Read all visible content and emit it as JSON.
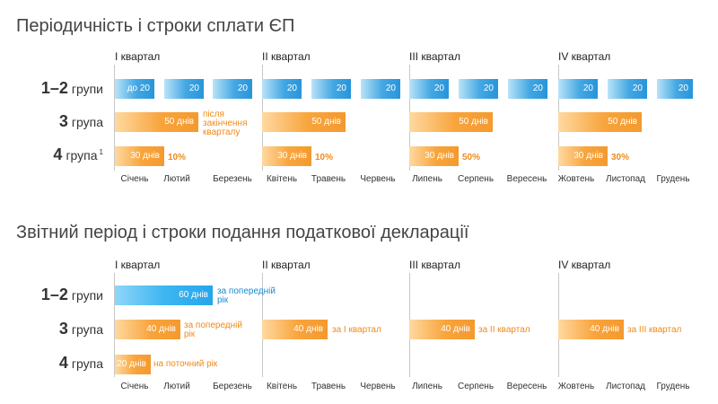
{
  "section1": {
    "title": "Періодичність і строки сплати ЄП",
    "quarters": [
      "I квартал",
      "II квартал",
      "III квартал",
      "IV квартал"
    ],
    "rows": [
      {
        "num": "1–2",
        "text": "групи",
        "sup": ""
      },
      {
        "num": "3",
        "text": "група",
        "sup": ""
      },
      {
        "num": "4",
        "text": "група",
        "sup": "1"
      }
    ],
    "group12_bars": [
      "до 20",
      "20",
      "20",
      "20",
      "20",
      "20",
      "20",
      "20",
      "20",
      "20",
      "20",
      "20"
    ],
    "group3_bars": [
      "50 днів",
      "50 днів",
      "50 днів",
      "50 днів"
    ],
    "group3_note": "після закінчення кварталу",
    "group4_bars": [
      "30 днів",
      "30 днів",
      "30 днів",
      "30 днів"
    ],
    "group4_pcts": [
      "10%",
      "10%",
      "50%",
      "30%"
    ]
  },
  "section2": {
    "title": "Звітний період і строки подання податкової декларації",
    "quarters": [
      "I квартал",
      "II квартал",
      "III квартал",
      "IV квартал"
    ],
    "rows": [
      {
        "num": "1–2",
        "text": "групи"
      },
      {
        "num": "3",
        "text": "група"
      },
      {
        "num": "4",
        "text": "група"
      }
    ],
    "g12_bar": "60 днів",
    "g12_note": "за попередній рік",
    "g3_bars": [
      "40 днів",
      "40 днів",
      "40 днів",
      "40 днів"
    ],
    "g3_notes": [
      "за попередній рік",
      "за I квартал",
      "за II квартал",
      "за III квартал"
    ],
    "g4_bar": "20 днів",
    "g4_note": "на поточний рік"
  },
  "months": [
    "Січень",
    "Лютий",
    "Березень",
    "Квітень",
    "Травень",
    "Червень",
    "Липень",
    "Серпень",
    "Вересень",
    "Жовтень",
    "Листопад",
    "Грудень"
  ],
  "colors": {
    "blue": "#2795da",
    "orange": "#f49a2e",
    "text": "#333333"
  }
}
